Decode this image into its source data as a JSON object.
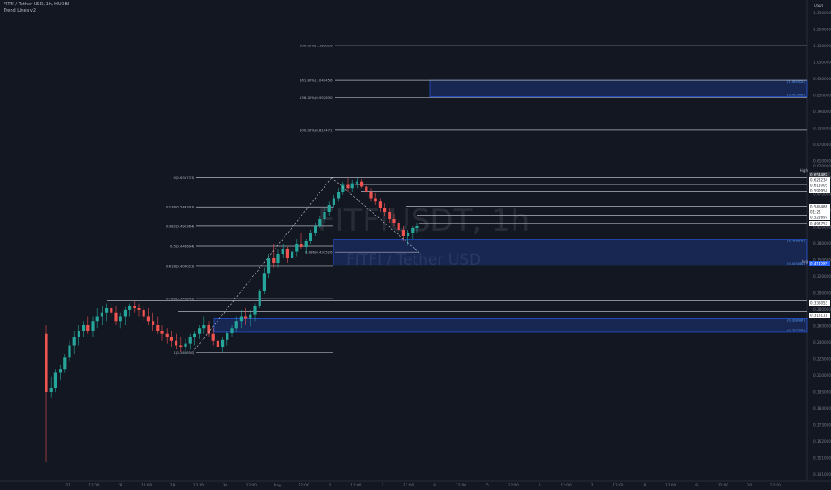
{
  "header": {
    "symbol_line": "FITFI / Tether USD, 1h, HUOBI",
    "indicator": "Trend Lines v2"
  },
  "currency": {
    "label": "USDT"
  },
  "watermark": {
    "symbol": "FITFIUSDT, 1h",
    "name": "FITFI / Tether USD"
  },
  "colors": {
    "bg": "#131722",
    "up": "#26a69a",
    "down": "#ef5350",
    "zone": "#2962ff",
    "zone_fill": "rgba(41,98,255,0.22)",
    "level": "#b2b5be"
  },
  "chart_data": {
    "type": "candlestick",
    "y_axis": {
      "ticks": [
        "1.350000",
        "1.250000",
        "1.150000",
        "1.050000",
        "0.950000",
        "0.850000",
        "0.790000",
        "0.730000",
        "0.670000",
        "0.610000",
        "0.550000",
        "0.470000",
        "0.440000",
        "0.410000",
        "0.380000",
        "0.350000",
        "0.320000",
        "0.300000",
        "0.280000",
        "0.260000",
        "0.240000",
        "0.225000",
        "0.210000",
        "0.195000",
        "0.184000",
        "0.173000",
        "0.162000",
        "0.151000",
        "0.141000"
      ]
    },
    "x_axis": {
      "ticks": [
        "27",
        "12:00",
        "28",
        "12:00",
        "29",
        "12:00",
        "30",
        "12:00",
        "May",
        "12:00",
        "2",
        "12:00",
        "3",
        "12:00",
        "4",
        "12:00",
        "5",
        "12:00",
        "6",
        "12:00",
        "7",
        "12:00",
        "8",
        "12:00",
        "9",
        "12:00",
        "10",
        "12:00"
      ]
    },
    "candles_ohlc": [
      [
        0.285,
        0.3,
        0.15,
        0.21
      ],
      [
        0.21,
        0.23,
        0.205,
        0.215
      ],
      [
        0.215,
        0.24,
        0.21,
        0.235
      ],
      [
        0.235,
        0.245,
        0.225,
        0.24
      ],
      [
        0.24,
        0.26,
        0.235,
        0.255
      ],
      [
        0.255,
        0.275,
        0.25,
        0.27
      ],
      [
        0.27,
        0.29,
        0.26,
        0.28
      ],
      [
        0.28,
        0.3,
        0.27,
        0.29
      ],
      [
        0.29,
        0.305,
        0.28,
        0.3
      ],
      [
        0.3,
        0.31,
        0.285,
        0.29
      ],
      [
        0.29,
        0.31,
        0.28,
        0.305
      ],
      [
        0.305,
        0.32,
        0.295,
        0.31
      ],
      [
        0.31,
        0.325,
        0.3,
        0.315
      ],
      [
        0.315,
        0.33,
        0.305,
        0.32
      ],
      [
        0.32,
        0.33,
        0.31,
        0.315
      ],
      [
        0.315,
        0.325,
        0.3,
        0.305
      ],
      [
        0.305,
        0.315,
        0.295,
        0.31
      ],
      [
        0.31,
        0.322,
        0.3,
        0.318
      ],
      [
        0.318,
        0.33,
        0.31,
        0.325
      ],
      [
        0.325,
        0.335,
        0.315,
        0.32
      ],
      [
        0.32,
        0.33,
        0.31,
        0.318
      ],
      [
        0.318,
        0.325,
        0.305,
        0.31
      ],
      [
        0.31,
        0.32,
        0.3,
        0.305
      ],
      [
        0.305,
        0.315,
        0.29,
        0.3
      ],
      [
        0.3,
        0.31,
        0.285,
        0.29
      ],
      [
        0.29,
        0.3,
        0.275,
        0.285
      ],
      [
        0.285,
        0.295,
        0.272,
        0.28
      ],
      [
        0.28,
        0.29,
        0.268,
        0.275
      ],
      [
        0.275,
        0.285,
        0.265,
        0.27
      ],
      [
        0.27,
        0.28,
        0.262,
        0.268
      ],
      [
        0.268,
        0.278,
        0.26,
        0.272
      ],
      [
        0.272,
        0.285,
        0.265,
        0.28
      ],
      [
        0.28,
        0.29,
        0.27,
        0.285
      ],
      [
        0.285,
        0.3,
        0.278,
        0.295
      ],
      [
        0.295,
        0.31,
        0.285,
        0.3
      ],
      [
        0.3,
        0.305,
        0.28,
        0.285
      ],
      [
        0.285,
        0.295,
        0.27,
        0.275
      ],
      [
        0.275,
        0.285,
        0.26,
        0.268
      ],
      [
        0.268,
        0.28,
        0.262,
        0.276
      ],
      [
        0.276,
        0.29,
        0.27,
        0.286
      ],
      [
        0.286,
        0.3,
        0.28,
        0.295
      ],
      [
        0.295,
        0.31,
        0.288,
        0.305
      ],
      [
        0.305,
        0.318,
        0.295,
        0.31
      ],
      [
        0.31,
        0.32,
        0.3,
        0.308
      ],
      [
        0.308,
        0.318,
        0.298,
        0.312
      ],
      [
        0.312,
        0.33,
        0.305,
        0.325
      ],
      [
        0.325,
        0.36,
        0.32,
        0.355
      ],
      [
        0.355,
        0.4,
        0.35,
        0.39
      ],
      [
        0.39,
        0.43,
        0.38,
        0.42
      ],
      [
        0.42,
        0.45,
        0.4,
        0.41
      ],
      [
        0.41,
        0.44,
        0.4,
        0.43
      ],
      [
        0.43,
        0.45,
        0.42,
        0.44
      ],
      [
        0.44,
        0.445,
        0.41,
        0.42
      ],
      [
        0.42,
        0.44,
        0.405,
        0.435
      ],
      [
        0.435,
        0.46,
        0.425,
        0.45
      ],
      [
        0.45,
        0.47,
        0.44,
        0.445
      ],
      [
        0.445,
        0.46,
        0.43,
        0.455
      ],
      [
        0.455,
        0.48,
        0.45,
        0.47
      ],
      [
        0.47,
        0.5,
        0.465,
        0.49
      ],
      [
        0.49,
        0.52,
        0.485,
        0.51
      ],
      [
        0.51,
        0.54,
        0.5,
        0.53
      ],
      [
        0.53,
        0.56,
        0.52,
        0.55
      ],
      [
        0.55,
        0.58,
        0.54,
        0.57
      ],
      [
        0.57,
        0.6,
        0.56,
        0.59
      ],
      [
        0.59,
        0.62,
        0.58,
        0.61
      ],
      [
        0.61,
        0.63,
        0.59,
        0.6
      ],
      [
        0.6,
        0.625,
        0.59,
        0.615
      ],
      [
        0.615,
        0.632,
        0.6,
        0.62
      ],
      [
        0.62,
        0.628,
        0.6,
        0.605
      ],
      [
        0.605,
        0.615,
        0.58,
        0.59
      ],
      [
        0.59,
        0.6,
        0.56,
        0.57
      ],
      [
        0.57,
        0.585,
        0.55,
        0.56
      ],
      [
        0.56,
        0.57,
        0.53,
        0.54
      ],
      [
        0.54,
        0.555,
        0.52,
        0.53
      ],
      [
        0.53,
        0.54,
        0.5,
        0.51
      ],
      [
        0.51,
        0.525,
        0.49,
        0.5
      ],
      [
        0.5,
        0.51,
        0.47,
        0.48
      ],
      [
        0.48,
        0.49,
        0.455,
        0.465
      ],
      [
        0.465,
        0.48,
        0.448,
        0.47
      ],
      [
        0.47,
        0.49,
        0.46,
        0.485
      ],
      [
        0.485,
        0.5,
        0.47,
        0.49
      ]
    ],
    "fib_levels_left": [
      {
        "label": "0(0.631737)",
        "value": 0.631737
      },
      {
        "label": "0.236(0.544397)",
        "value": 0.544397
      },
      {
        "label": "0.382(0.490364)",
        "value": 0.490364
      },
      {
        "label": "0.5(0.446694)",
        "value": 0.446694
      },
      {
        "label": "0.618(0.403023)",
        "value": 0.403023
      },
      {
        "label": "0.786(0.340849)",
        "value": 0.340849
      },
      {
        "label": "1(0.261650)",
        "value": 0.26165
      }
    ],
    "fib_levels_ext": [
      {
        "label": "200.00%(1.182616)",
        "value": 1.182616
      },
      {
        "label": "161.80%(1.040456)",
        "value": 1.040456
      },
      {
        "label": "138.20%(0.952630)",
        "value": 0.95263
      },
      {
        "label": "100.00%(0.810471)",
        "value": 0.810471
      }
    ],
    "fib_inner": {
      "label": "0.886(0.433526)",
      "value": 0.433526
    },
    "zones": [
      {
        "top_label": "(1.040322)",
        "bottom_label": "(0.955965)",
        "top": 1.040322,
        "bottom": 0.955965
      },
      {
        "top_label": "(0.458843)",
        "bottom_label": "(0.405082)",
        "top": 0.458843,
        "bottom": 0.405082
      },
      {
        "top_label": "(0.308087)",
        "bottom_label": "(0.287756)",
        "top": 0.308087,
        "bottom": 0.287756
      }
    ],
    "price_labels": [
      {
        "text": "0.670000",
        "kind": "plain"
      },
      {
        "text": "High",
        "kind": "tag"
      },
      {
        "text": "0.654482",
        "kind": "dark"
      },
      {
        "text": "0.628234",
        "kind": "white"
      },
      {
        "text": "0.611005",
        "kind": "white"
      },
      {
        "text": "0.590954",
        "kind": "white"
      },
      {
        "text": "0.546488",
        "kind": "white"
      },
      {
        "text": "01:22",
        "kind": "white"
      },
      {
        "text": "0.521697",
        "kind": "white"
      },
      {
        "text": "0.498757",
        "kind": "white"
      },
      {
        "text": "Avg",
        "kind": "tag"
      },
      {
        "text": "0.414285",
        "kind": "blue"
      },
      {
        "text": "0.336053",
        "kind": "white"
      },
      {
        "text": "0.316111",
        "kind": "white"
      }
    ]
  }
}
